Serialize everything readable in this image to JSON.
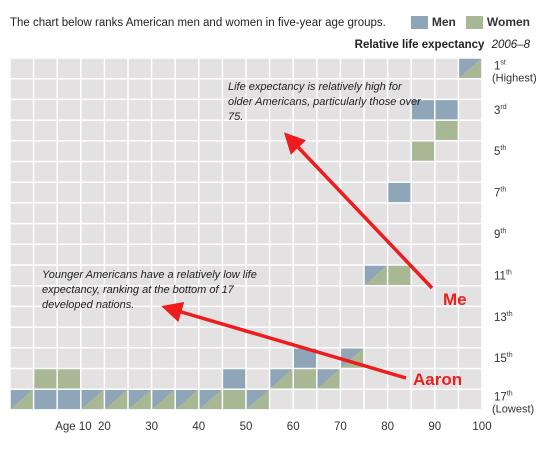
{
  "intro": "The chart below ranks American men and women in five-year age groups.",
  "legend": [
    {
      "label": "Men",
      "color": "#8fa5b8"
    },
    {
      "label": "Women",
      "color": "#a9b894"
    }
  ],
  "colors": {
    "grid_bg": "#e3e1e1",
    "grid_line": "#ffffff",
    "arrow": "#ee1c1c"
  },
  "chart_data": {
    "type": "heatmap",
    "title": "Relative life expectancy",
    "subtitle": "2006–8",
    "x_tick_labels": [
      {
        "age": 10,
        "label": "Age 10"
      },
      {
        "age": 20,
        "label": "20"
      },
      {
        "age": 30,
        "label": "30"
      },
      {
        "age": 40,
        "label": "40"
      },
      {
        "age": 50,
        "label": "50"
      },
      {
        "age": 60,
        "label": "60"
      },
      {
        "age": 70,
        "label": "70"
      },
      {
        "age": 80,
        "label": "80"
      },
      {
        "age": 90,
        "label": "90"
      },
      {
        "age": 100,
        "label": "100"
      }
    ],
    "y_rank_labels": [
      {
        "rank": 1,
        "num": "1",
        "suffix": "st",
        "note": "(Highest)"
      },
      {
        "rank": 3,
        "num": "3",
        "suffix": "rd"
      },
      {
        "rank": 5,
        "num": "5",
        "suffix": "th"
      },
      {
        "rank": 7,
        "num": "7",
        "suffix": "th"
      },
      {
        "rank": 9,
        "num": "9",
        "suffix": "th"
      },
      {
        "rank": 11,
        "num": "11",
        "suffix": "th"
      },
      {
        "rank": 13,
        "num": "13",
        "suffix": "th"
      },
      {
        "rank": 15,
        "num": "15",
        "suffix": "th"
      },
      {
        "rank": 17,
        "num": "17",
        "suffix": "th",
        "note": "(Lowest)"
      }
    ],
    "x_range": [
      0,
      100
    ],
    "rank_range": [
      1,
      17
    ],
    "series": [
      {
        "name": "Men",
        "age_groups": [
          "0-4",
          "5-9",
          "10-14",
          "15-19",
          "20-24",
          "25-29",
          "30-34",
          "35-39",
          "40-44",
          "45-49",
          "50-54",
          "55-59",
          "60-64",
          "65-69",
          "70-74",
          "75-79",
          "80-84",
          "85-89",
          "90-94",
          "95-99"
        ],
        "ranks": [
          17,
          17,
          17,
          17,
          17,
          17,
          17,
          17,
          17,
          16,
          17,
          16,
          15,
          16,
          15,
          11,
          7,
          3,
          3,
          1
        ]
      },
      {
        "name": "Women",
        "age_groups": [
          "0-4",
          "5-9",
          "10-14",
          "15-19",
          "20-24",
          "25-29",
          "30-34",
          "35-39",
          "40-44",
          "45-49",
          "50-54",
          "55-59",
          "60-64",
          "65-69",
          "70-74",
          "75-79",
          "80-84",
          "85-89",
          "90-94",
          "95-99"
        ],
        "ranks": [
          17,
          16,
          16,
          17,
          17,
          17,
          17,
          17,
          17,
          17,
          17,
          16,
          16,
          16,
          15,
          11,
          11,
          5,
          4,
          1
        ]
      }
    ],
    "annotations": [
      "Life expectancy is relatively high for older Americans, particularly those over 75.",
      "Younger Americans have a relatively low life expectancy, ranking at the bottom of 17 developed nations."
    ]
  },
  "callouts": {
    "me": "Me",
    "aaron": "Aaron"
  }
}
